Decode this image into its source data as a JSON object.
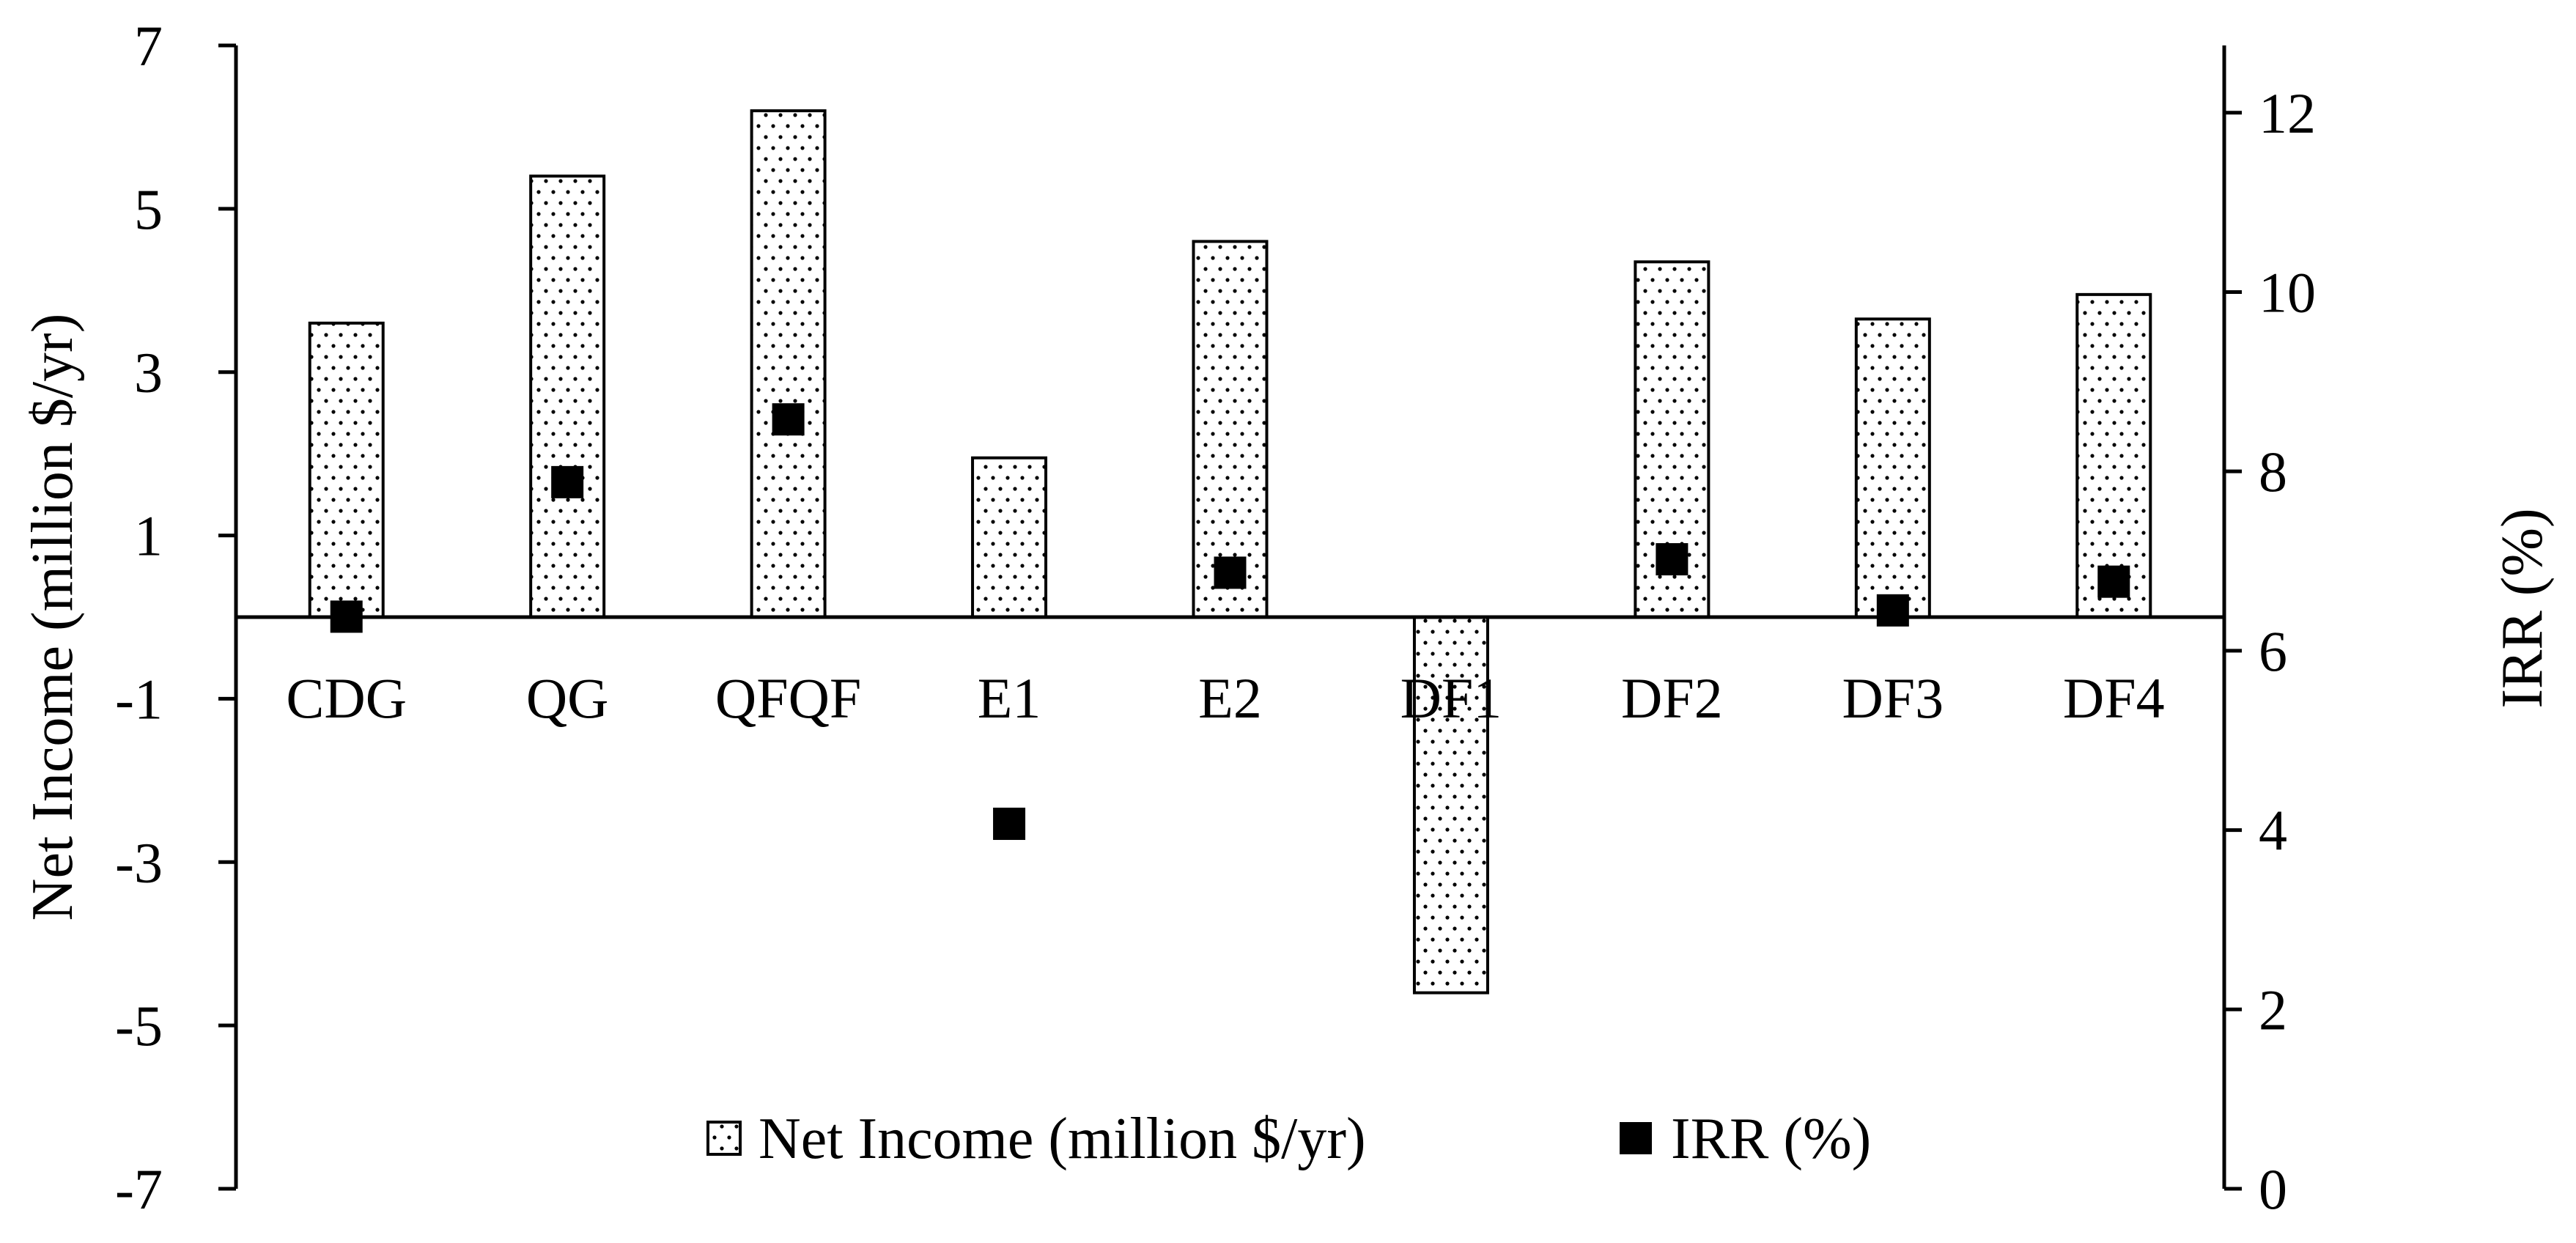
{
  "chart_data": {
    "type": "bar",
    "categories": [
      "CDG",
      "QG",
      "QFQF",
      "E1",
      "E2",
      "DF1",
      "DF2",
      "DF3",
      "DF4"
    ],
    "series": [
      {
        "name": "Net Income (million $/yr)",
        "kind": "bar",
        "axis": "left",
        "values": [
          3.6,
          5.4,
          6.2,
          1.95,
          4.6,
          -4.6,
          4.35,
          3.65,
          3.95
        ]
      },
      {
        "name": "IRR (%)",
        "kind": "scatter",
        "axis": "right",
        "values": [
          6.38,
          7.88,
          8.58,
          4.07,
          6.87,
          null,
          7.02,
          6.45,
          6.77
        ]
      }
    ],
    "y_left": {
      "label": "Net Income (million $/yr)",
      "lim": [
        -7,
        7
      ],
      "ticks": [
        7,
        5,
        3,
        1,
        -1,
        -3,
        -5,
        -7
      ]
    },
    "y_right": {
      "label": "IRR (%)",
      "lim": [
        0,
        12.75
      ],
      "ticks": [
        0,
        2,
        4,
        6,
        8,
        10,
        12
      ]
    },
    "legend": {
      "placement": "bottom-center"
    },
    "grid": false,
    "colors": {
      "bar_fill": "#ffffff",
      "bar_edge": "#000000",
      "bar_dots": "#000000",
      "marker": "#000000"
    }
  }
}
